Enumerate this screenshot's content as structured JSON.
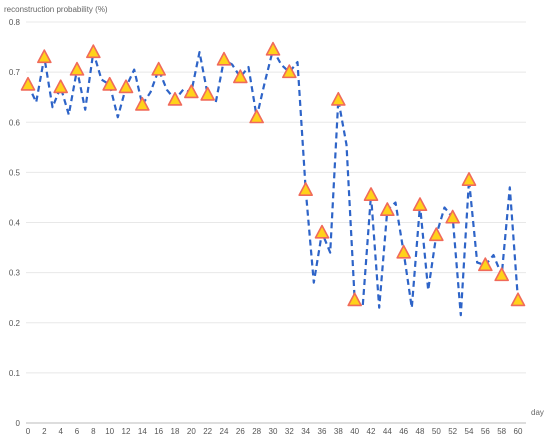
{
  "chart_data": {
    "type": "line",
    "title": "",
    "ylabel": "reconstruction probability (%)",
    "xlabel": "day",
    "xlim": [
      0,
      60
    ],
    "ylim": [
      0,
      0.8
    ],
    "grid": true,
    "x_ticks": [
      0,
      2,
      4,
      6,
      8,
      10,
      12,
      14,
      16,
      18,
      20,
      22,
      24,
      26,
      28,
      30,
      32,
      34,
      36,
      38,
      40,
      42,
      44,
      46,
      48,
      50,
      52,
      54,
      56,
      58,
      60
    ],
    "y_ticks": [
      0,
      0.1,
      0.2,
      0.3,
      0.4,
      0.5,
      0.6,
      0.7,
      0.8
    ],
    "y_tick_labels": [
      "0",
      "0.1",
      "0.2",
      "0.3",
      "0.4",
      "0.5",
      "0.6",
      "0.7",
      "0.8"
    ],
    "colors": {
      "line": "#2e64c8",
      "marker_fill": "#ffd21a",
      "marker_stroke": "#f06a5a",
      "grid": "#e8e8e8",
      "axis": "#bbbbbb"
    },
    "series": [
      {
        "x": [
          0,
          1,
          2,
          3,
          4,
          5,
          6,
          7,
          8,
          9,
          10,
          11,
          12,
          13,
          14,
          15,
          16,
          17,
          18,
          19,
          20,
          21,
          22,
          23,
          24,
          25,
          26,
          27,
          28,
          29,
          30,
          31,
          32,
          33,
          34,
          35,
          36,
          37,
          38,
          39,
          40,
          41,
          42,
          43,
          44,
          45,
          46,
          47,
          48,
          49,
          50,
          51,
          52,
          53,
          54,
          55,
          56,
          57,
          58,
          59,
          60
        ],
        "y": [
          0.675,
          0.64,
          0.73,
          0.63,
          0.67,
          0.615,
          0.705,
          0.625,
          0.74,
          0.685,
          0.675,
          0.61,
          0.67,
          0.705,
          0.635,
          0.66,
          0.705,
          0.665,
          0.645,
          0.665,
          0.66,
          0.74,
          0.655,
          0.64,
          0.725,
          0.715,
          0.69,
          0.71,
          0.61,
          0.68,
          0.745,
          0.715,
          0.7,
          0.72,
          0.465,
          0.28,
          0.38,
          0.34,
          0.645,
          0.555,
          0.245,
          0.235,
          0.455,
          0.23,
          0.425,
          0.44,
          0.34,
          0.23,
          0.435,
          0.265,
          0.375,
          0.43,
          0.41,
          0.215,
          0.485,
          0.32,
          0.315,
          0.335,
          0.295,
          0.47,
          0.245
        ]
      }
    ],
    "marker_x": [
      0,
      2,
      4,
      6,
      8,
      10,
      12,
      14,
      16,
      18,
      20,
      22,
      24,
      26,
      28,
      30,
      32,
      34,
      36,
      38,
      40,
      42,
      44,
      46,
      48,
      50,
      52,
      54,
      56,
      58,
      60
    ],
    "marker_y": [
      0.675,
      0.73,
      0.67,
      0.705,
      0.74,
      0.675,
      0.67,
      0.635,
      0.705,
      0.645,
      0.66,
      0.655,
      0.725,
      0.69,
      0.61,
      0.745,
      0.7,
      0.465,
      0.38,
      0.645,
      0.245,
      0.455,
      0.425,
      0.34,
      0.435,
      0.375,
      0.41,
      0.485,
      0.315,
      0.295,
      0.245
    ]
  }
}
